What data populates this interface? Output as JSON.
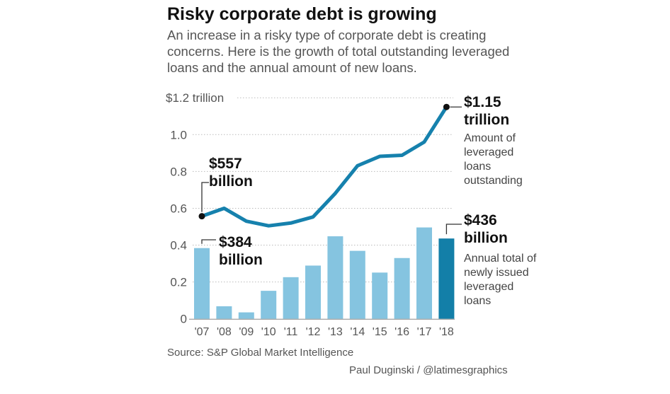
{
  "title": "Risky corporate debt is growing",
  "subtitle": "An increase in a risky type of corporate debt is creating concerns. Here is the growth of total outstanding leveraged loans and the annual amount of new loans.",
  "source": "Source: S&P Global Market Intelligence",
  "credit": "Paul Duginski / @latimesgraphics",
  "colors": {
    "bar": "#85c4e0",
    "bar_highlight": "#137fa8",
    "line": "#1681ad"
  },
  "annotations": {
    "line_start_value": "$557",
    "line_start_unit": "billion",
    "line_end_value": "$1.15",
    "line_end_unit": "trillion",
    "line_label": "Amount of leveraged loans outstanding",
    "bar_start_value": "$384",
    "bar_start_unit": "billion",
    "bar_end_value": "$436",
    "bar_end_unit": "billion",
    "bar_label": "Annual total of newly issued leveraged loans"
  },
  "chart_data": {
    "type": "bar+line",
    "title": "Risky corporate debt is growing",
    "categories": [
      "'07",
      "'08",
      "'09",
      "'10",
      "'11",
      "'12",
      "'13",
      "'14",
      "'15",
      "'16",
      "'17",
      "'18"
    ],
    "yticks": [
      {
        "v": 0,
        "label": "0"
      },
      {
        "v": 0.2,
        "label": "0.2"
      },
      {
        "v": 0.4,
        "label": "0.4"
      },
      {
        "v": 0.6,
        "label": "0.6"
      },
      {
        "v": 0.8,
        "label": "0.8"
      },
      {
        "v": 1.0,
        "label": "1.0"
      },
      {
        "v": 1.2,
        "label": "$1.2 trillion"
      }
    ],
    "ylim": [
      0,
      1.2
    ],
    "grid": true,
    "series": [
      {
        "name": "Annual total of newly issued leveraged loans",
        "type": "bar",
        "values": [
          0.384,
          0.068,
          0.035,
          0.152,
          0.226,
          0.289,
          0.448,
          0.369,
          0.251,
          0.33,
          0.496,
          0.436
        ]
      },
      {
        "name": "Amount of leveraged loans outstanding",
        "type": "line",
        "values": [
          0.557,
          0.6,
          0.53,
          0.505,
          0.52,
          0.553,
          0.681,
          0.831,
          0.882,
          0.888,
          0.96,
          1.15
        ]
      }
    ]
  }
}
